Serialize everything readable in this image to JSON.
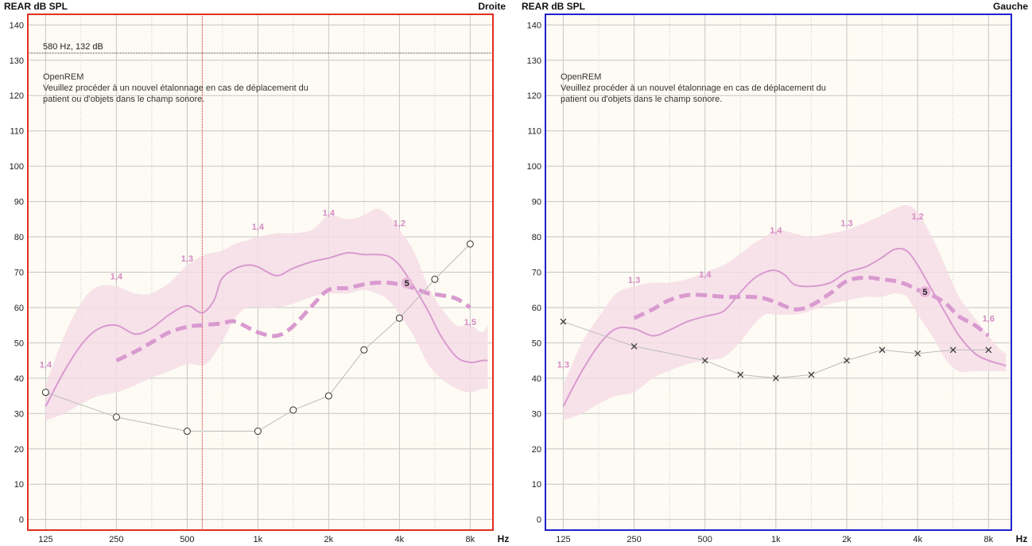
{
  "chart_data": [
    {
      "type": "line",
      "side": "right",
      "title": "REAR dB SPL",
      "corner_label": "Droite",
      "xlabel": "Hz",
      "ylabel": "",
      "frame_color": "#e03020",
      "x_scale": "log",
      "xlim": [
        105,
        10000
      ],
      "ylim": [
        -3,
        143
      ],
      "x_ticks": [
        125,
        250,
        500,
        1000,
        2000,
        4000,
        8000
      ],
      "x_tick_labels": [
        "125",
        "250",
        "500",
        "1k",
        "2k",
        "4k",
        "8k"
      ],
      "y_ticks": [
        0,
        10,
        20,
        30,
        40,
        50,
        60,
        70,
        80,
        90,
        100,
        110,
        120,
        130,
        140
      ],
      "cursor": {
        "label": "580 Hz, 132 dB",
        "x": 580,
        "y": 132
      },
      "notes": [
        "OpenREM",
        "Veuillez procéder à un nouvel étalonnage en cas de déplacement du",
        "patient ou d'objets dans le champ sonore."
      ],
      "band": {
        "x": [
          125,
          150,
          180,
          210,
          250,
          300,
          350,
          420,
          500,
          600,
          700,
          800,
          900,
          1000,
          1200,
          1400,
          1700,
          2000,
          2400,
          2800,
          3200,
          3600,
          4000,
          4600,
          5300,
          6000,
          7000,
          8000,
          9000,
          9500
        ],
        "upper": [
          38,
          52,
          62,
          66,
          66,
          64,
          64,
          67,
          72,
          75,
          76,
          78,
          79,
          80,
          81,
          81,
          82,
          86,
          85,
          86,
          88,
          86,
          82,
          76,
          66,
          60,
          55,
          55,
          53,
          55
        ],
        "lower": [
          28,
          30,
          33,
          35,
          36,
          38,
          40,
          42,
          44,
          44,
          50,
          57,
          60,
          60,
          60,
          61,
          63,
          64,
          64,
          65,
          64,
          62,
          58,
          52,
          44,
          40,
          37,
          36,
          37,
          37
        ]
      },
      "series": [
        {
          "style": "solid",
          "color": "#d99ad0",
          "x": [
            125,
            150,
            180,
            210,
            250,
            300,
            350,
            420,
            500,
            580,
            650,
            700,
            800,
            900,
            1000,
            1200,
            1400,
            1700,
            2000,
            2400,
            2800,
            3200,
            3600,
            4000,
            4600,
            5300,
            6000,
            7000,
            8000,
            9000,
            9500
          ],
          "y": [
            32,
            42,
            50,
            54,
            55,
            52.5,
            54,
            58,
            60.5,
            58.5,
            62,
            68,
            71,
            72,
            71.5,
            69,
            71,
            73,
            74,
            75.5,
            75,
            75,
            74.5,
            72,
            66,
            59,
            52,
            46,
            44.5,
            45,
            45
          ]
        },
        {
          "style": "dashed",
          "color": "#d99ad0",
          "x": [
            250,
            300,
            350,
            420,
            500,
            580,
            700,
            800,
            1000,
            1200,
            1400,
            1700,
            2000,
            2400,
            2800,
            3200,
            3600,
            4000,
            4600,
            5300,
            6000,
            7000,
            8000
          ],
          "y": [
            45,
            47.5,
            50,
            53,
            54.5,
            55,
            55.5,
            56,
            53,
            52,
            54.5,
            60.5,
            65,
            65.5,
            66.5,
            67,
            67,
            66.5,
            65.5,
            64,
            63.5,
            62.5,
            60
          ]
        },
        {
          "style": "markers-circle",
          "color": "#999999",
          "x": [
            125,
            250,
            500,
            1000,
            1414,
            2000,
            2828,
            4000,
            5657,
            8000
          ],
          "y": [
            36,
            29,
            25,
            25,
            31,
            35,
            48,
            57,
            68,
            78
          ]
        }
      ],
      "band_labels": [
        {
          "text": "1,4",
          "x": 125,
          "y": 43
        },
        {
          "text": "1,4",
          "x": 250,
          "y": 68
        },
        {
          "text": "1,3",
          "x": 500,
          "y": 73
        },
        {
          "text": "1,4",
          "x": 1000,
          "y": 82
        },
        {
          "text": "1,4",
          "x": 2000,
          "y": 86
        },
        {
          "text": "1,2",
          "x": 4000,
          "y": 83
        },
        {
          "text": "1,5",
          "x": 8000,
          "y": 55
        }
      ],
      "target_marker": {
        "text": "5",
        "x": 4300,
        "y": 67
      }
    },
    {
      "type": "line",
      "side": "left",
      "title": "REAR dB SPL",
      "corner_label": "Gauche",
      "xlabel": "Hz",
      "ylabel": "",
      "frame_color": "#2020d0",
      "x_scale": "log",
      "xlim": [
        105,
        10000
      ],
      "ylim": [
        -3,
        143
      ],
      "x_ticks": [
        125,
        250,
        500,
        1000,
        2000,
        4000,
        8000
      ],
      "x_tick_labels": [
        "125",
        "250",
        "500",
        "1k",
        "2k",
        "4k",
        "8k"
      ],
      "y_ticks": [
        0,
        10,
        20,
        30,
        40,
        50,
        60,
        70,
        80,
        90,
        100,
        110,
        120,
        130,
        140
      ],
      "notes": [
        "OpenREM",
        "Veuillez procéder à un nouvel étalonnage en cas de déplacement du",
        "patient ou d'objets dans le champ sonore."
      ],
      "band": {
        "x": [
          125,
          150,
          180,
          210,
          250,
          300,
          350,
          420,
          500,
          600,
          700,
          800,
          900,
          1000,
          1200,
          1400,
          1700,
          2000,
          2400,
          2800,
          3200,
          3600,
          4000,
          4600,
          5300,
          6000,
          7000,
          8000,
          9000,
          9500
        ],
        "upper": [
          38,
          50,
          58,
          64,
          66,
          67,
          67,
          68,
          70,
          72,
          75,
          78,
          80,
          82,
          81,
          80,
          81,
          82,
          84,
          86,
          88,
          89,
          87,
          80,
          71,
          63,
          57,
          52,
          48,
          47
        ],
        "lower": [
          28,
          30,
          33,
          35,
          36,
          40,
          42,
          44,
          45,
          46,
          50,
          55,
          58,
          58,
          58,
          59,
          61,
          62,
          63,
          63,
          64,
          63,
          58,
          52,
          45,
          42,
          42,
          42,
          42,
          42
        ]
      },
      "series": [
        {
          "style": "solid",
          "color": "#d99ad0",
          "x": [
            125,
            150,
            180,
            210,
            250,
            300,
            350,
            420,
            500,
            600,
            700,
            800,
            900,
            1000,
            1100,
            1200,
            1400,
            1700,
            2000,
            2400,
            2800,
            3200,
            3600,
            4000,
            4600,
            5300,
            6000,
            7000,
            8000,
            9000,
            9500
          ],
          "y": [
            32,
            42,
            50,
            54,
            54,
            52,
            53.5,
            56,
            57.5,
            59,
            64,
            68,
            70,
            70.5,
            69,
            66.5,
            66,
            67,
            70,
            71.5,
            74,
            76.5,
            76,
            72,
            65,
            58,
            52,
            47,
            45,
            44,
            43.5
          ]
        },
        {
          "style": "dashed",
          "color": "#d99ad0",
          "x": [
            250,
            300,
            350,
            420,
            500,
            600,
            700,
            800,
            900,
            1000,
            1200,
            1400,
            1700,
            2000,
            2400,
            2800,
            3200,
            3600,
            4000,
            4600,
            5300,
            6000,
            7000,
            8000
          ],
          "y": [
            57,
            59.5,
            62,
            63.5,
            63.5,
            63,
            63,
            63,
            62.5,
            61.5,
            59.5,
            60.5,
            64,
            67.5,
            68.5,
            68,
            67.5,
            66.5,
            65,
            63.5,
            61,
            57.5,
            55,
            52
          ]
        },
        {
          "style": "markers-x",
          "color": "#999999",
          "x": [
            125,
            250,
            500,
            707,
            1000,
            1414,
            2000,
            2828,
            4000,
            5657,
            8000
          ],
          "y": [
            56,
            49,
            45,
            41,
            40,
            41,
            45,
            48,
            47,
            48,
            48
          ]
        }
      ],
      "band_labels": [
        {
          "text": "1,3",
          "x": 125,
          "y": 43
        },
        {
          "text": "1,3",
          "x": 250,
          "y": 67
        },
        {
          "text": "1,4",
          "x": 500,
          "y": 68.5
        },
        {
          "text": "1,4",
          "x": 1000,
          "y": 81
        },
        {
          "text": "1,3",
          "x": 2000,
          "y": 83
        },
        {
          "text": "1,2",
          "x": 4000,
          "y": 85
        },
        {
          "text": "1,6",
          "x": 8000,
          "y": 56
        }
      ],
      "target_marker": {
        "text": "5",
        "x": 4300,
        "y": 64.5
      }
    }
  ]
}
